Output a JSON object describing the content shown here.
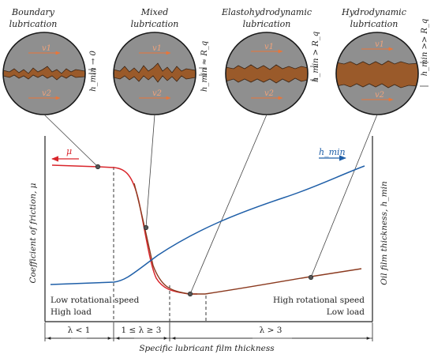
{
  "regimes": [
    {
      "title_line1": "Boundary",
      "title_line2": "lubrication",
      "gap_label": "h_min → 0"
    },
    {
      "title_line1": "Mixed",
      "title_line2": "lubrication",
      "gap_label": "h_min ≈ R_q"
    },
    {
      "title_line1": "Elastohydrodynamic",
      "title_line2": "lubrication",
      "gap_label": "h_min > R_q"
    },
    {
      "title_line1": "Hydrodynamic",
      "title_line2": "lubrication",
      "gap_label": "h_min >> R_q"
    }
  ],
  "surface_velocity_labels": [
    "v1",
    "v2"
  ],
  "curves": {
    "friction_label": "μ",
    "friction_color": "#d9252b",
    "friction_dark_color": "#8b3a1f",
    "film_label": "h_min",
    "film_color": "#1f5fa8"
  },
  "axes": {
    "left_label": "Coefficient of friction, μ",
    "right_label": "Oil film thickness, h_min",
    "x_label": "Specific lubricant film thickness"
  },
  "annotations": {
    "low_speed_line1": "Low rotational speed",
    "low_speed_line2": "High load",
    "high_speed_line1": "High rotational speed",
    "high_speed_line2": "Low load"
  },
  "ranges": [
    "λ < 1",
    "1 ≤ λ ≥ 3",
    "λ > 3"
  ],
  "colors": {
    "disk_fill": "#8f8f8f",
    "lubricant_fill": "#9a5a2a",
    "arrow_orange": "#e8763a"
  }
}
